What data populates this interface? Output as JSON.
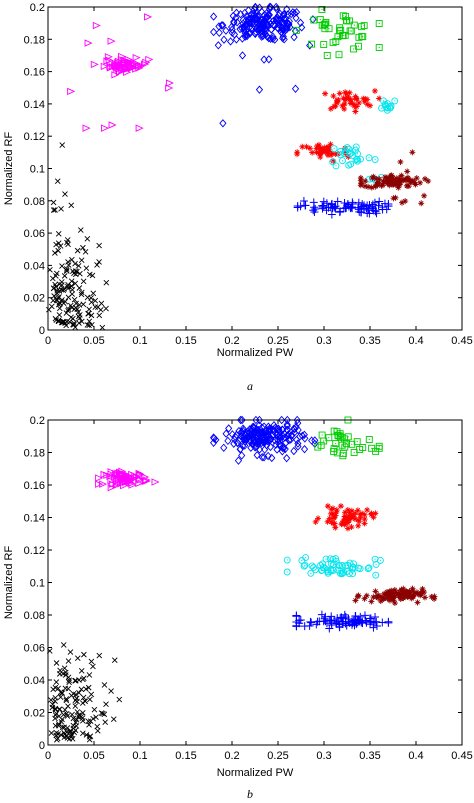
{
  "chart_data": [
    {
      "type": "scatter",
      "caption": "a",
      "xlabel": "Normalized PW",
      "ylabel": "Normalized RF",
      "xlim": [
        0,
        0.45
      ],
      "ylim": [
        0,
        0.2
      ],
      "xticks": [
        "0",
        "0.05",
        "0.1",
        "0.15",
        "0.2",
        "0.25",
        "0.3",
        "0.35",
        "0.4",
        "0.45"
      ],
      "yticks": [
        "0",
        "0.02",
        "0.04",
        "0.06",
        "0.08",
        "0.1",
        "0.12",
        "0.14",
        "0.16",
        "0.18",
        "0.2"
      ],
      "grid": false,
      "clusters": [
        {
          "marker": "x",
          "color": "#000000",
          "count": 150,
          "cx": 0.03,
          "cy": 0.04,
          "sx": 0.03,
          "sy": 0.03,
          "xr": [
            0,
            0.12
          ],
          "yr": [
            0,
            0.125
          ]
        },
        {
          "marker": "triangle",
          "color": "#ff00ff",
          "count": 60,
          "cx": 0.085,
          "cy": 0.164,
          "sx": 0.012,
          "sy": 0.002,
          "xr": [
            0.05,
            0.12
          ],
          "yr": [
            0.158,
            0.17
          ]
        },
        {
          "marker": "triangle",
          "color": "#ff00ff",
          "count": 14,
          "cx": 0.075,
          "cy": 0.15,
          "sx": 0.035,
          "sy": 0.02,
          "xr": [
            0,
            0.14
          ],
          "yr": [
            0.125,
            0.195
          ]
        },
        {
          "marker": "diamond",
          "color": "#0000ff",
          "count": 200,
          "cx": 0.235,
          "cy": 0.189,
          "sx": 0.022,
          "sy": 0.005,
          "xr": [
            0.18,
            0.29
          ],
          "yr": [
            0.175,
            0.2
          ]
        },
        {
          "marker": "diamond",
          "color": "#0000ff",
          "count": 6,
          "cx": 0.23,
          "cy": 0.14,
          "sx": 0.03,
          "sy": 0.02,
          "xr": [
            0.18,
            0.27
          ],
          "yr": [
            0.128,
            0.17
          ]
        },
        {
          "marker": "square",
          "color": "#00cc00",
          "count": 40,
          "cx": 0.315,
          "cy": 0.185,
          "sx": 0.02,
          "sy": 0.006,
          "xr": [
            0.27,
            0.36
          ],
          "yr": [
            0.17,
            0.2
          ]
        },
        {
          "marker": "star",
          "color": "#ff0000",
          "count": 40,
          "cx": 0.325,
          "cy": 0.142,
          "sx": 0.015,
          "sy": 0.003,
          "xr": [
            0.28,
            0.36
          ],
          "yr": [
            0.135,
            0.148
          ]
        },
        {
          "marker": "star",
          "color": "#ff0000",
          "count": 40,
          "cx": 0.3,
          "cy": 0.11,
          "sx": 0.014,
          "sy": 0.003,
          "xr": [
            0.25,
            0.33
          ],
          "yr": [
            0.103,
            0.116
          ]
        },
        {
          "marker": "circle",
          "color": "#00e5ee",
          "count": 25,
          "cx": 0.33,
          "cy": 0.108,
          "sx": 0.012,
          "sy": 0.004,
          "xr": [
            0.3,
            0.36
          ],
          "yr": [
            0.098,
            0.116
          ]
        },
        {
          "marker": "circle",
          "color": "#00e5ee",
          "count": 12,
          "cx": 0.37,
          "cy": 0.14,
          "sx": 0.006,
          "sy": 0.002,
          "xr": [
            0.36,
            0.38
          ],
          "yr": [
            0.136,
            0.145
          ]
        },
        {
          "marker": "circle",
          "color": "#00e5ee",
          "count": 6,
          "cx": 0.355,
          "cy": 0.093,
          "sx": 0.005,
          "sy": 0.002,
          "xr": [
            0.345,
            0.365
          ],
          "yr": [
            0.09,
            0.097
          ]
        },
        {
          "marker": "star",
          "color": "#8b0000",
          "count": 80,
          "cx": 0.375,
          "cy": 0.092,
          "sx": 0.016,
          "sy": 0.002,
          "xr": [
            0.34,
            0.42
          ],
          "yr": [
            0.086,
            0.098
          ]
        },
        {
          "marker": "star",
          "color": "#8b0000",
          "count": 10,
          "cx": 0.38,
          "cy": 0.09,
          "sx": 0.025,
          "sy": 0.012,
          "xr": [
            0.35,
            0.42
          ],
          "yr": [
            0.07,
            0.11
          ]
        },
        {
          "marker": "plus",
          "color": "#0000ff",
          "count": 80,
          "cx": 0.32,
          "cy": 0.076,
          "sx": 0.025,
          "sy": 0.002,
          "xr": [
            0.27,
            0.37
          ],
          "yr": [
            0.068,
            0.082
          ]
        }
      ]
    },
    {
      "type": "scatter",
      "caption": "b",
      "xlabel": "Normalized PW",
      "ylabel": "Normalized RF",
      "xlim": [
        0,
        0.45
      ],
      "ylim": [
        0,
        0.2
      ],
      "xticks": [
        "0",
        "0.05",
        "0.1",
        "0.15",
        "0.2",
        "0.25",
        "0.3",
        "0.35",
        "0.4",
        "0.45"
      ],
      "yticks": [
        "0",
        "0.02",
        "0.04",
        "0.06",
        "0.08",
        "0.1",
        "0.12",
        "0.14",
        "0.16",
        "0.18",
        "0.2"
      ],
      "grid": false,
      "clusters": [
        {
          "marker": "x",
          "color": "#000000",
          "count": 140,
          "cx": 0.03,
          "cy": 0.04,
          "sx": 0.03,
          "sy": 0.025,
          "xr": [
            0,
            0.1
          ],
          "yr": [
            0,
            0.09
          ]
        },
        {
          "marker": "triangle",
          "color": "#ff00ff",
          "count": 70,
          "cx": 0.085,
          "cy": 0.164,
          "sx": 0.012,
          "sy": 0.002,
          "xr": [
            0.055,
            0.12
          ],
          "yr": [
            0.158,
            0.17
          ]
        },
        {
          "marker": "diamond",
          "color": "#0000ff",
          "count": 200,
          "cx": 0.235,
          "cy": 0.189,
          "sx": 0.022,
          "sy": 0.005,
          "xr": [
            0.18,
            0.29
          ],
          "yr": [
            0.175,
            0.2
          ]
        },
        {
          "marker": "square",
          "color": "#00cc00",
          "count": 35,
          "cx": 0.32,
          "cy": 0.185,
          "sx": 0.02,
          "sy": 0.006,
          "xr": [
            0.27,
            0.36
          ],
          "yr": [
            0.17,
            0.2
          ]
        },
        {
          "marker": "star",
          "color": "#ff0000",
          "count": 60,
          "cx": 0.325,
          "cy": 0.14,
          "sx": 0.014,
          "sy": 0.003,
          "xr": [
            0.285,
            0.36
          ],
          "yr": [
            0.133,
            0.147
          ]
        },
        {
          "marker": "circle",
          "color": "#00e5ee",
          "count": 55,
          "cx": 0.315,
          "cy": 0.11,
          "sx": 0.022,
          "sy": 0.003,
          "xr": [
            0.26,
            0.37
          ],
          "yr": [
            0.103,
            0.117
          ]
        },
        {
          "marker": "star",
          "color": "#8b0000",
          "count": 90,
          "cx": 0.375,
          "cy": 0.092,
          "sx": 0.016,
          "sy": 0.002,
          "xr": [
            0.33,
            0.42
          ],
          "yr": [
            0.087,
            0.097
          ]
        },
        {
          "marker": "plus",
          "color": "#0000ff",
          "count": 85,
          "cx": 0.32,
          "cy": 0.076,
          "sx": 0.025,
          "sy": 0.002,
          "xr": [
            0.27,
            0.37
          ],
          "yr": [
            0.066,
            0.083
          ]
        }
      ]
    }
  ]
}
